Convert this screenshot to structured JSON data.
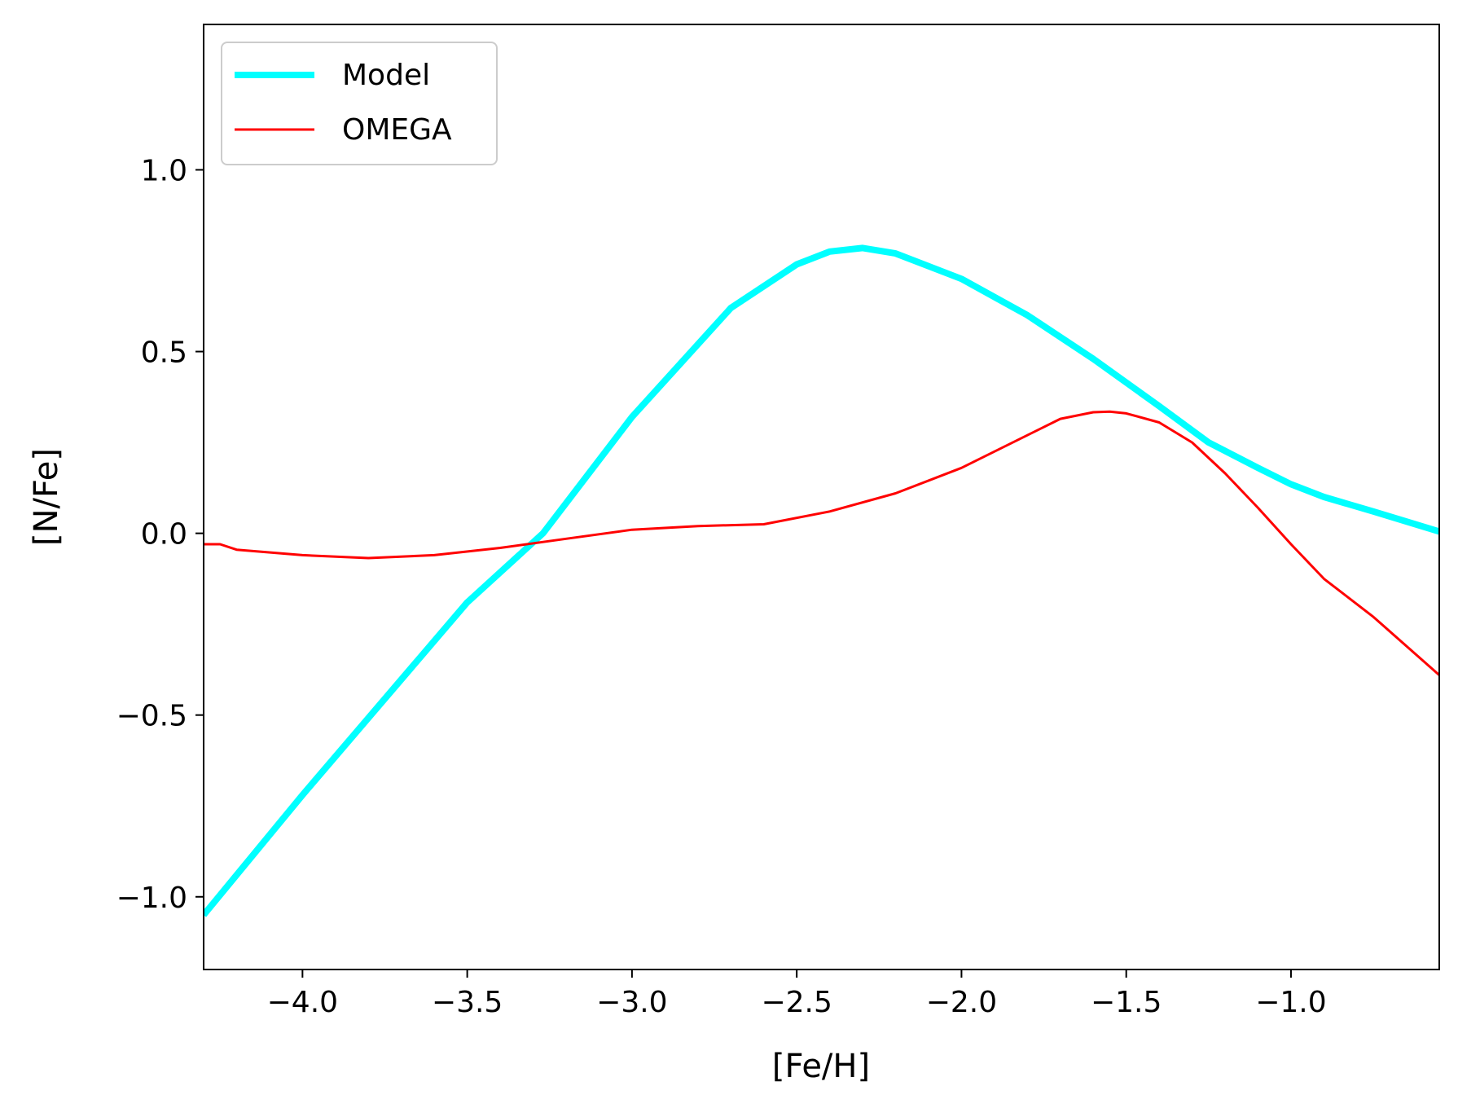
{
  "chart_data": {
    "type": "line",
    "title": "",
    "xlabel": "[Fe/H]",
    "ylabel": "[N/Fe]",
    "xlim": [
      -4.3,
      -0.55
    ],
    "ylim": [
      -1.2,
      1.4
    ],
    "xticks": [
      -4.0,
      -3.5,
      -3.0,
      -2.5,
      -2.0,
      -1.5,
      -1.0
    ],
    "xtick_labels": [
      "−4.0",
      "−3.5",
      "−3.0",
      "−2.5",
      "−2.0",
      "−1.5",
      "−1.0"
    ],
    "yticks": [
      -1.0,
      -0.5,
      0.0,
      0.5,
      1.0
    ],
    "ytick_labels": [
      "−1.0",
      "−0.5",
      "0.0",
      "0.5",
      "1.0"
    ],
    "legend_position": "top-left",
    "grid": false,
    "series": [
      {
        "name": "Model",
        "color": "#00ffff",
        "x": [
          -4.3,
          -4.0,
          -3.5,
          -3.27,
          -3.0,
          -2.7,
          -2.5,
          -2.4,
          -2.3,
          -2.2,
          -2.0,
          -1.8,
          -1.6,
          -1.4,
          -1.25,
          -1.1,
          -1.0,
          -0.9,
          -0.75,
          -0.55
        ],
        "y": [
          -1.05,
          -0.72,
          -0.19,
          0.0,
          0.32,
          0.62,
          0.74,
          0.775,
          0.785,
          0.77,
          0.7,
          0.6,
          0.48,
          0.35,
          0.25,
          0.18,
          0.135,
          0.1,
          0.06,
          0.005
        ]
      },
      {
        "name": "OMEGA",
        "color": "#ff0000",
        "x": [
          -4.3,
          -4.25,
          -4.2,
          -4.0,
          -3.8,
          -3.6,
          -3.4,
          -3.2,
          -3.0,
          -2.8,
          -2.6,
          -2.4,
          -2.2,
          -2.0,
          -1.8,
          -1.7,
          -1.6,
          -1.55,
          -1.5,
          -1.4,
          -1.3,
          -1.2,
          -1.1,
          -1.0,
          -0.9,
          -0.75,
          -0.55
        ],
        "y": [
          -0.03,
          -0.03,
          -0.045,
          -0.06,
          -0.068,
          -0.06,
          -0.04,
          -0.015,
          0.01,
          0.02,
          0.025,
          0.06,
          0.11,
          0.18,
          0.27,
          0.315,
          0.333,
          0.335,
          0.33,
          0.305,
          0.25,
          0.165,
          0.07,
          -0.03,
          -0.125,
          -0.23,
          -0.39
        ]
      }
    ]
  }
}
